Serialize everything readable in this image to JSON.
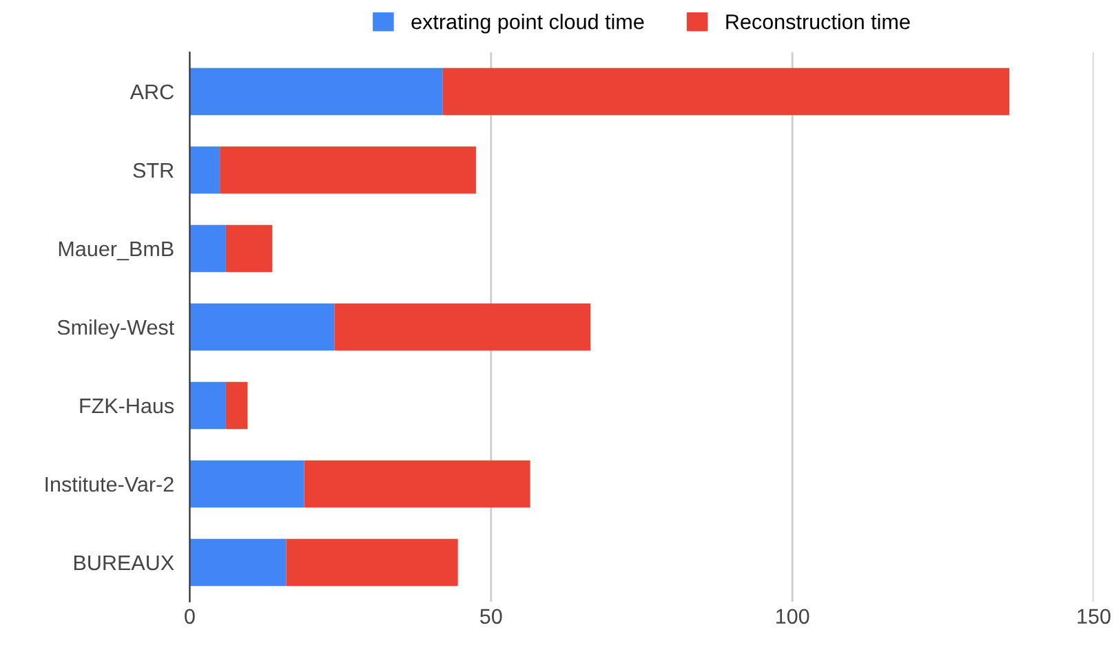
{
  "chart_data": {
    "type": "bar",
    "orientation": "horizontal",
    "stacked": true,
    "categories": [
      "ARC",
      "STR",
      "Mauer_BmB",
      "Smiley-West",
      "FZK-Haus",
      "Institute-Var-2",
      "BUREAUX"
    ],
    "series": [
      {
        "name": "extrating point cloud time",
        "color": "#4285f4",
        "values": [
          42,
          5,
          6,
          24,
          6,
          19,
          16
        ]
      },
      {
        "name": "Reconstruction time",
        "color": "#ea4335",
        "values": [
          94,
          42.5,
          7.7,
          42.5,
          3.6,
          37.5,
          28.5
        ]
      }
    ],
    "xlim": [
      0,
      150
    ],
    "xticks": [
      0,
      50,
      100,
      150
    ],
    "grid": "x",
    "legend": "top"
  }
}
